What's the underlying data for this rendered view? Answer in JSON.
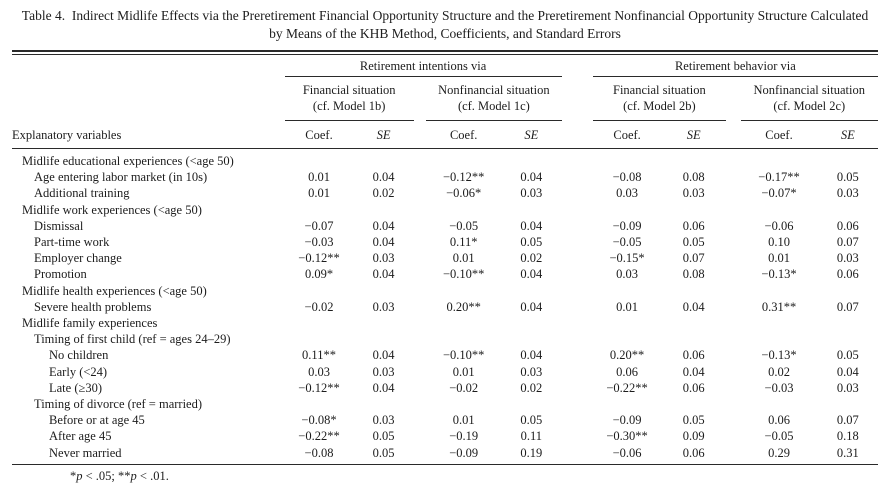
{
  "title": {
    "label": "Table 4.",
    "text": "Indirect Midlife Effects via the Preretirement Financial Opportunity Structure and the Preretirement Nonfinancial Opportunity Structure Calculated by Means of the KHB Method, Coefficients, and Standard Errors"
  },
  "header": {
    "stub": "Explanatory variables",
    "group1": "Retirement intentions via",
    "group2": "Retirement behavior via",
    "sub_columns": [
      {
        "name": "Financial situation",
        "model": "(cf. Model 1b)"
      },
      {
        "name": "Nonfinancial situation",
        "model": "(cf. Model 1c)"
      },
      {
        "name": "Financial situation",
        "model": "(cf. Model 2b)"
      },
      {
        "name": "Nonfinancial situation",
        "model": "(cf. Model 2c)"
      }
    ],
    "coef": "Coef.",
    "se": "SE"
  },
  "rows": [
    {
      "label": "Midlife educational experiences (<age 50)",
      "indent": 0
    },
    {
      "label": "Age entering labor market (in 10s)",
      "indent": 1,
      "values": [
        "0.01",
        "0.04",
        "−0.12**",
        "0.04",
        "−0.08",
        "0.08",
        "−0.17**",
        "0.05"
      ]
    },
    {
      "label": "Additional training",
      "indent": 1,
      "values": [
        "0.01",
        "0.02",
        "−0.06*",
        "0.03",
        "0.03",
        "0.03",
        "−0.07*",
        "0.03"
      ]
    },
    {
      "label": "Midlife work experiences (<age 50)",
      "indent": 0
    },
    {
      "label": "Dismissal",
      "indent": 1,
      "values": [
        "−0.07",
        "0.04",
        "−0.05",
        "0.04",
        "−0.09",
        "0.06",
        "−0.06",
        "0.06"
      ]
    },
    {
      "label": "Part-time work",
      "indent": 1,
      "values": [
        "−0.03",
        "0.04",
        "0.11*",
        "0.05",
        "−0.05",
        "0.05",
        "0.10",
        "0.07"
      ]
    },
    {
      "label": "Employer change",
      "indent": 1,
      "values": [
        "−0.12**",
        "0.03",
        "0.01",
        "0.02",
        "−0.15*",
        "0.07",
        "0.01",
        "0.03"
      ]
    },
    {
      "label": "Promotion",
      "indent": 1,
      "values": [
        "0.09*",
        "0.04",
        "−0.10**",
        "0.04",
        "0.03",
        "0.08",
        "−0.13*",
        "0.06"
      ]
    },
    {
      "label": "Midlife health experiences (<age 50)",
      "indent": 0
    },
    {
      "label": "Severe health problems",
      "indent": 1,
      "values": [
        "−0.02",
        "0.03",
        "0.20**",
        "0.04",
        "0.01",
        "0.04",
        "0.31**",
        "0.07"
      ]
    },
    {
      "label": "Midlife family experiences",
      "indent": 0
    },
    {
      "label": "Timing of first child (ref = ages 24–29)",
      "indent": 1
    },
    {
      "label": "No children",
      "indent": 2,
      "values": [
        "0.11**",
        "0.04",
        "−0.10**",
        "0.04",
        "0.20**",
        "0.06",
        "−0.13*",
        "0.05"
      ]
    },
    {
      "label": "Early (<24)",
      "indent": 2,
      "values": [
        "0.03",
        "0.03",
        "0.01",
        "0.03",
        "0.06",
        "0.04",
        "0.02",
        "0.04"
      ]
    },
    {
      "label": "Late (≥30)",
      "indent": 2,
      "values": [
        "−0.12**",
        "0.04",
        "−0.02",
        "0.02",
        "−0.22**",
        "0.06",
        "−0.03",
        "0.03"
      ]
    },
    {
      "label": "Timing of divorce (ref = married)",
      "indent": 1
    },
    {
      "label": "Before or at age 45",
      "indent": 2,
      "values": [
        "−0.08*",
        "0.03",
        "0.01",
        "0.05",
        "−0.09",
        "0.05",
        "0.06",
        "0.07"
      ]
    },
    {
      "label": "After age 45",
      "indent": 2,
      "values": [
        "−0.22**",
        "0.05",
        "−0.19",
        "0.11",
        "−0.30**",
        "0.09",
        "−0.05",
        "0.18"
      ]
    },
    {
      "label": "Never married",
      "indent": 2,
      "values": [
        "−0.08",
        "0.05",
        "−0.09",
        "0.19",
        "−0.06",
        "0.06",
        "0.29",
        "0.31"
      ]
    }
  ],
  "footnote": {
    "sig1": "*",
    "p1": "p",
    "t1": " < .05; ",
    "sig2": "**",
    "p2": "p",
    "t2": " < .01."
  }
}
